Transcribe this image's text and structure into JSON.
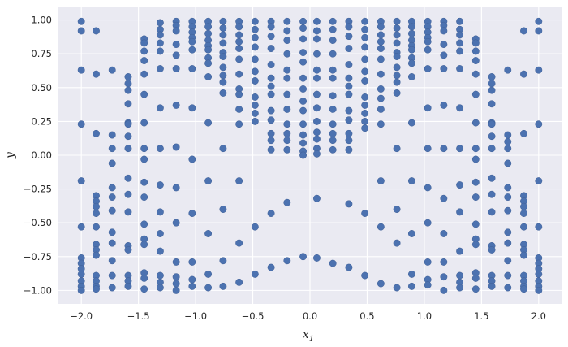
{
  "chart_data": {
    "type": "scatter",
    "xlabel": "x",
    "xlabel_sub": "1",
    "ylabel": "y",
    "xlim": [
      -2.2,
      2.2
    ],
    "ylim": [
      -1.1,
      1.1
    ],
    "grid": true,
    "colors": {
      "background": "#EAEAF2",
      "grid": "#FFFFFF",
      "marker": "#4C72B0"
    },
    "xticks": [
      -2.0,
      -1.5,
      -1.0,
      -0.5,
      0.0,
      0.5,
      1.0,
      1.5,
      2.0
    ],
    "xtick_labels": [
      "−2.0",
      "−1.5",
      "−1.0",
      "−0.5",
      "0.0",
      "0.5",
      "1.0",
      "1.5",
      "2.0"
    ],
    "yticks": [
      -1.0,
      -0.75,
      -0.5,
      -0.25,
      0.0,
      0.25,
      0.5,
      0.75,
      1.0
    ],
    "ytick_labels": [
      "−1.00",
      "−0.75",
      "−0.50",
      "−0.25",
      "0.00",
      "0.25",
      "0.50",
      "0.75",
      "1.00"
    ],
    "columns": [
      {
        "x": -2.0,
        "y": [
          0.99,
          0.92,
          0.63,
          0.23,
          -0.19,
          -0.53,
          -0.76,
          -0.8,
          -0.84,
          -0.88,
          -0.93,
          -0.97,
          -1.0
        ]
      },
      {
        "x": -1.87,
        "y": [
          0.92,
          0.6,
          0.16,
          -0.3,
          -0.34,
          -0.38,
          -0.43,
          -0.53,
          -0.66,
          -0.7,
          -0.74,
          -0.89,
          -0.93,
          -0.97,
          -0.99
        ]
      },
      {
        "x": -1.73,
        "y": [
          0.63,
          0.15,
          0.05,
          -0.06,
          -0.24,
          -0.31,
          -0.41,
          -0.57,
          -0.65,
          -0.78,
          -0.89,
          -0.98
        ]
      },
      {
        "x": -1.59,
        "y": [
          0.58,
          0.53,
          0.48,
          0.38,
          0.24,
          0.23,
          0.14,
          0.05,
          -0.17,
          -0.29,
          -0.42,
          -0.67,
          -0.7,
          -0.89,
          -0.93,
          -0.97
        ]
      },
      {
        "x": -1.45,
        "y": [
          0.86,
          0.83,
          0.77,
          0.7,
          0.6,
          0.45,
          0.24,
          0.05,
          -0.03,
          -0.2,
          -0.31,
          -0.51,
          -0.62,
          -0.66,
          -0.87,
          -0.91,
          -0.99
        ]
      },
      {
        "x": -1.31,
        "y": [
          0.98,
          0.93,
          0.89,
          0.83,
          0.77,
          0.64,
          0.35,
          0.05,
          -0.22,
          -0.42,
          -0.58,
          -0.71,
          -0.89,
          -0.94,
          -0.98
        ]
      },
      {
        "x": -1.17,
        "y": [
          0.99,
          0.96,
          0.92,
          0.82,
          0.74,
          0.64,
          0.37,
          0.06,
          -0.24,
          -0.5,
          -0.79,
          -0.9,
          -0.95,
          -1.0
        ]
      },
      {
        "x": -1.03,
        "y": [
          0.99,
          0.95,
          0.91,
          0.87,
          0.84,
          0.78,
          0.64,
          0.35,
          -0.03,
          -0.43,
          -0.79,
          -0.92,
          -0.97
        ]
      },
      {
        "x": -0.89,
        "y": [
          0.99,
          0.95,
          0.9,
          0.85,
          0.81,
          0.78,
          0.72,
          0.68,
          0.58,
          0.24,
          -0.19,
          -0.58,
          -0.88,
          -0.98
        ]
      },
      {
        "x": -0.76,
        "y": [
          0.99,
          0.94,
          0.89,
          0.83,
          0.76,
          0.73,
          0.65,
          0.59,
          0.54,
          0.46,
          0.05,
          -0.4,
          -0.78,
          -0.97
        ]
      },
      {
        "x": -0.62,
        "y": [
          0.99,
          0.95,
          0.89,
          0.84,
          0.79,
          0.71,
          0.6,
          0.49,
          0.45,
          0.34,
          0.23,
          -0.19,
          -0.65,
          -0.94
        ]
      },
      {
        "x": -0.48,
        "y": [
          0.99,
          0.93,
          0.87,
          0.8,
          0.71,
          0.62,
          0.55,
          0.43,
          0.37,
          0.31,
          0.25,
          -0.53,
          -0.88
        ]
      },
      {
        "x": -0.34,
        "y": [
          0.99,
          0.95,
          0.88,
          0.79,
          0.67,
          0.57,
          0.51,
          0.45,
          0.33,
          0.26,
          0.16,
          0.11,
          0.04,
          -0.43,
          -0.83
        ]
      },
      {
        "x": -0.2,
        "y": [
          0.99,
          0.92,
          0.85,
          0.75,
          0.63,
          0.57,
          0.45,
          0.34,
          0.23,
          0.16,
          0.11,
          0.04,
          -0.35,
          -0.78
        ]
      },
      {
        "x": -0.06,
        "y": [
          0.99,
          0.94,
          0.86,
          0.76,
          0.69,
          0.57,
          0.49,
          0.4,
          0.33,
          0.23,
          0.15,
          0.09,
          0.03,
          0.0,
          -0.75
        ]
      },
      {
        "x": 0.06,
        "y": [
          0.99,
          0.92,
          0.86,
          0.75,
          0.63,
          0.57,
          0.45,
          0.35,
          0.25,
          0.17,
          0.12,
          0.05,
          0.01,
          -0.32,
          -0.76
        ]
      },
      {
        "x": 0.2,
        "y": [
          0.99,
          0.93,
          0.85,
          0.75,
          0.63,
          0.57,
          0.44,
          0.34,
          0.23,
          0.16,
          0.11,
          0.04,
          -0.8
        ]
      },
      {
        "x": 0.34,
        "y": [
          0.99,
          0.95,
          0.88,
          0.79,
          0.67,
          0.57,
          0.51,
          0.45,
          0.33,
          0.26,
          0.16,
          0.11,
          0.04,
          -0.36,
          -0.83
        ]
      },
      {
        "x": 0.48,
        "y": [
          0.99,
          0.93,
          0.87,
          0.8,
          0.71,
          0.62,
          0.55,
          0.43,
          0.37,
          0.31,
          0.25,
          0.2,
          -0.43,
          -0.89
        ]
      },
      {
        "x": 0.62,
        "y": [
          0.99,
          0.95,
          0.89,
          0.84,
          0.79,
          0.71,
          0.6,
          0.49,
          0.42,
          0.34,
          0.23,
          -0.19,
          -0.53,
          -0.95
        ]
      },
      {
        "x": 0.76,
        "y": [
          0.99,
          0.94,
          0.89,
          0.83,
          0.76,
          0.73,
          0.65,
          0.59,
          0.54,
          0.46,
          0.05,
          -0.4,
          -0.65,
          -0.98
        ]
      },
      {
        "x": 0.89,
        "y": [
          0.99,
          0.95,
          0.9,
          0.85,
          0.81,
          0.78,
          0.72,
          0.68,
          0.58,
          0.24,
          -0.19,
          -0.58,
          -0.88,
          -0.97
        ]
      },
      {
        "x": 1.03,
        "y": [
          0.99,
          0.95,
          0.91,
          0.87,
          0.84,
          0.78,
          0.64,
          0.35,
          0.05,
          -0.24,
          -0.5,
          -0.79,
          -0.92,
          -0.96
        ]
      },
      {
        "x": 1.17,
        "y": [
          0.99,
          0.96,
          0.92,
          0.82,
          0.74,
          0.64,
          0.37,
          0.05,
          -0.32,
          -0.58,
          -0.79,
          -0.9,
          -1.0
        ]
      },
      {
        "x": 1.31,
        "y": [
          0.99,
          0.93,
          0.89,
          0.83,
          0.77,
          0.64,
          0.35,
          0.05,
          -0.22,
          -0.42,
          -0.71,
          -0.89,
          -0.94,
          -0.98
        ]
      },
      {
        "x": 1.45,
        "y": [
          0.86,
          0.83,
          0.77,
          0.7,
          0.6,
          0.45,
          0.24,
          0.05,
          -0.03,
          -0.2,
          -0.31,
          -0.51,
          -0.62,
          -0.66,
          -0.87,
          -0.91,
          -0.99
        ]
      },
      {
        "x": 1.59,
        "y": [
          0.58,
          0.53,
          0.48,
          0.38,
          0.24,
          0.23,
          0.14,
          0.05,
          -0.17,
          -0.29,
          -0.42,
          -0.67,
          -0.7,
          -0.89,
          -0.93,
          -0.97
        ]
      },
      {
        "x": 1.73,
        "y": [
          0.63,
          0.15,
          0.1,
          0.05,
          -0.06,
          -0.24,
          -0.31,
          -0.41,
          -0.57,
          -0.65,
          -0.78,
          -0.89,
          -0.98
        ]
      },
      {
        "x": 1.87,
        "y": [
          0.92,
          0.6,
          0.16,
          -0.3,
          -0.34,
          -0.38,
          -0.43,
          -0.53,
          -0.66,
          -0.7,
          -0.74,
          -0.89,
          -0.93,
          -0.97,
          -0.99
        ]
      },
      {
        "x": 2.0,
        "y": [
          0.99,
          0.92,
          0.63,
          0.23,
          -0.19,
          -0.53,
          -0.76,
          -0.8,
          -0.84,
          -0.88,
          -0.93,
          -0.97,
          -1.0
        ]
      }
    ]
  }
}
